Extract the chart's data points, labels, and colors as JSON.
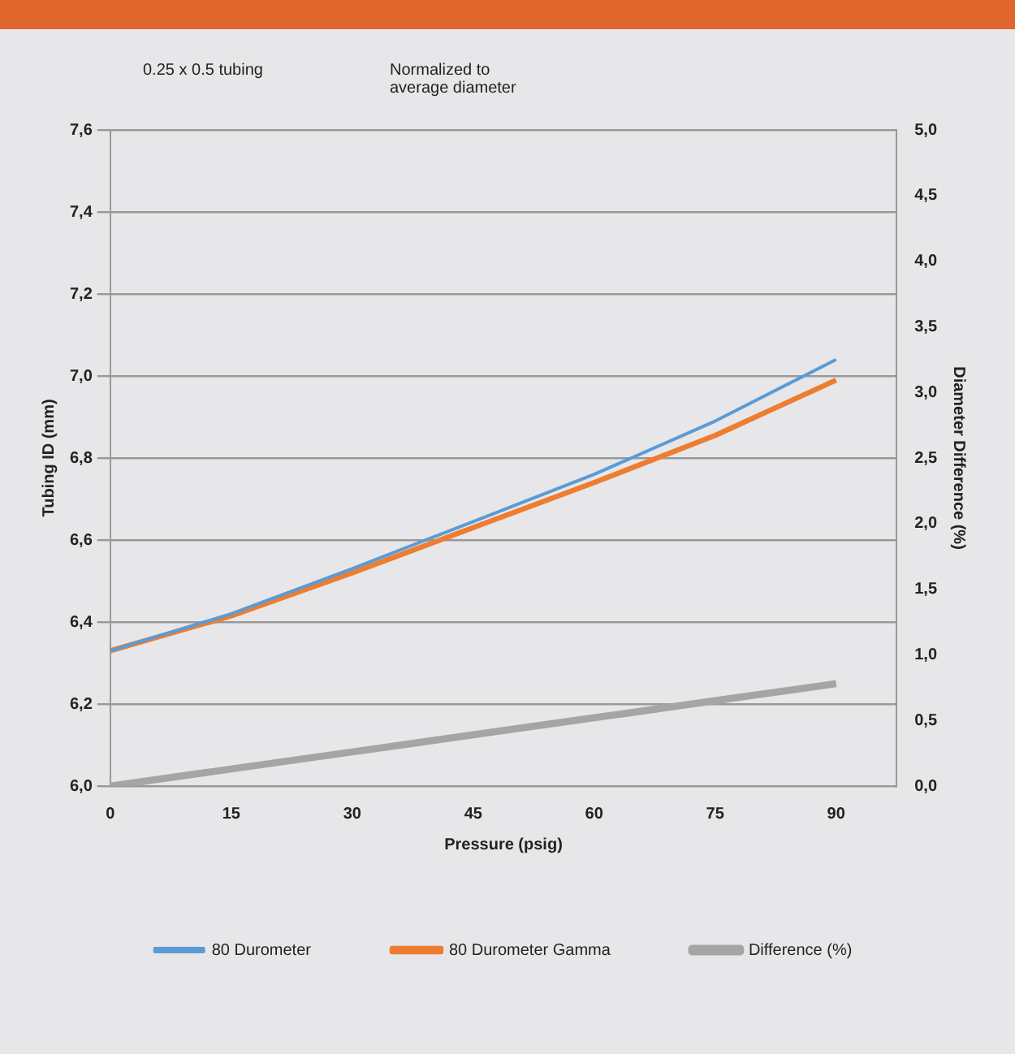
{
  "chart_data": {
    "type": "line",
    "annotations": [
      "0.25 x 0.5 tubing",
      "Normalized to\naverage diameter"
    ],
    "xlabel": "Pressure (psig)",
    "ylabel": "Tubing ID (mm)",
    "y2label": "Diameter Difference (%)",
    "x": [
      0,
      15,
      30,
      45,
      60,
      75,
      90
    ],
    "xlim": [
      0,
      97.5
    ],
    "xticks": [
      0,
      15,
      30,
      45,
      60,
      75,
      90
    ],
    "ylim": [
      6.0,
      7.6
    ],
    "yticks": [
      {
        "value": 6.0,
        "label": "6,0"
      },
      {
        "value": 6.2,
        "label": "6,2"
      },
      {
        "value": 6.4,
        "label": "6,4"
      },
      {
        "value": 6.6,
        "label": "6,6"
      },
      {
        "value": 6.8,
        "label": "6,8"
      },
      {
        "value": 7.0,
        "label": "7,0"
      },
      {
        "value": 7.2,
        "label": "7,2"
      },
      {
        "value": 7.4,
        "label": "7,4"
      },
      {
        "value": 7.6,
        "label": "7,6"
      }
    ],
    "y2lim": [
      0,
      5
    ],
    "y2ticks": [
      {
        "value": 0,
        "label": "0,0"
      },
      {
        "value": 0.5,
        "label": "0,5"
      },
      {
        "value": 1,
        "label": "1,0"
      },
      {
        "value": 1.5,
        "label": "1,5"
      },
      {
        "value": 2,
        "label": "2,0"
      },
      {
        "value": 2.5,
        "label": "2,5"
      },
      {
        "value": 3,
        "label": "3,0"
      },
      {
        "value": 3.5,
        "label": "3,5"
      },
      {
        "value": 4,
        "label": "4,0"
      },
      {
        "value": 4.5,
        "label": "4,5"
      },
      {
        "value": 5,
        "label": "5,0"
      }
    ],
    "series": [
      {
        "name": "80 Durometer",
        "color": "#5b9bd5",
        "values": [
          6.33,
          6.42,
          6.53,
          6.645,
          6.76,
          6.89,
          7.04
        ]
      },
      {
        "name": "80 Durometer Gamma",
        "color": "#ed7d31",
        "values": [
          6.33,
          6.415,
          6.52,
          6.63,
          6.74,
          6.855,
          6.99
        ]
      },
      {
        "name": "Difference (%)",
        "color": "#a5a5a5",
        "axis": "y2",
        "values": [
          0,
          0.13,
          0.26,
          0.39,
          0.52,
          0.65,
          0.78
        ]
      }
    ],
    "grid": "y",
    "legend": "bottom",
    "marker": "none",
    "line_style": "solid"
  }
}
